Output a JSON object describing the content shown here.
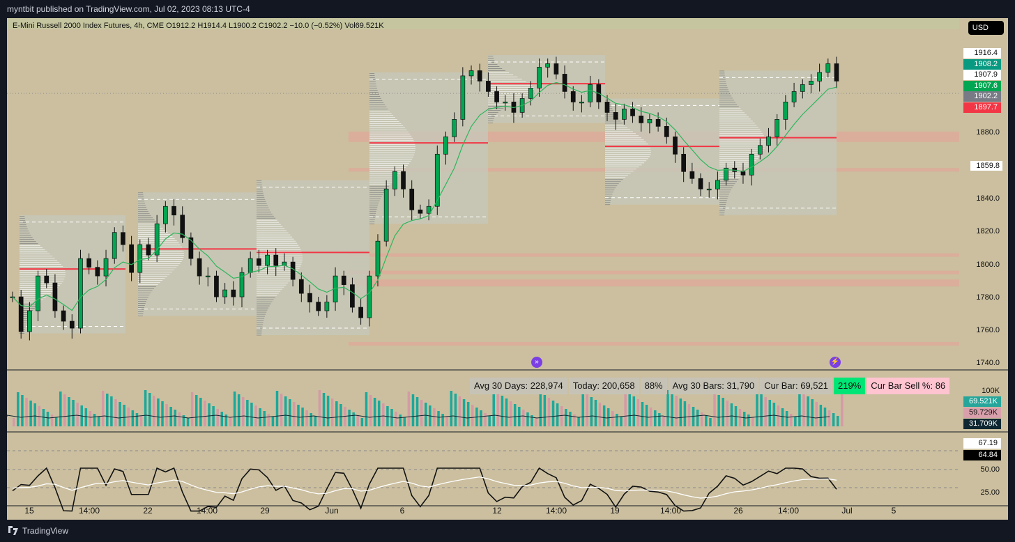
{
  "header": {
    "published": "myntbit published on TradingView.com, Jul 02, 2023 08:13 UTC-4"
  },
  "symbol_line": "E-Mini Russell 2000 Index Futures, 4h, CME  O1912.2  H1914.4  L1900.2  C1902.2  −10.0 (−0.52%)  Vol69.521K",
  "currency": "USD",
  "price_axis": {
    "labels": [
      "1880.0",
      "1840.0",
      "1820.0",
      "1800.0",
      "1780.0",
      "1760.0",
      "1740.0"
    ],
    "label_1860": "1859.8",
    "tags": [
      {
        "text": "1916.4",
        "bg": "#ffffff",
        "fg": "#111111"
      },
      {
        "text": "1908.2",
        "bg": "#089981",
        "fg": "#ffffff"
      },
      {
        "text": "1907.9",
        "bg": "#ffffff",
        "fg": "#111111"
      },
      {
        "text": "1907.6",
        "bg": "#00a651",
        "fg": "#ffffff"
      },
      {
        "text": "1902.2",
        "bg": "#787b86",
        "fg": "#ffffff"
      },
      {
        "text": "1897.7",
        "bg": "#f23645",
        "fg": "#ffffff"
      }
    ]
  },
  "volume_pane": {
    "axis_label": "100K",
    "tags": [
      {
        "text": "69.521K",
        "bg": "#26a69a",
        "fg": "#ffffff"
      },
      {
        "text": "59.729K",
        "bg": "#d9a0ac",
        "fg": "#111111"
      },
      {
        "text": "31.709K",
        "bg": "#0f2732",
        "fg": "#ffffff"
      }
    ],
    "stats": [
      {
        "text": "Avg 30 Days: 228,974",
        "bg": "#c6c3b6"
      },
      {
        "text": "Today: 200,658",
        "bg": "#c6c3b6"
      },
      {
        "text": "88%",
        "bg": "#c6c3b6"
      },
      {
        "text": "Avg 30 Bars: 31,790",
        "bg": "#c6c3b6"
      },
      {
        "text": "Cur Bar: 69,521",
        "bg": "#c6c3b6"
      },
      {
        "text": "219%",
        "bg": "#00e676"
      },
      {
        "text": "Cur Bar Sell %: 86",
        "bg": "#ffc4d0"
      }
    ]
  },
  "rsi_pane": {
    "axis_labels": [
      "50.00",
      "25.00"
    ],
    "tags": [
      {
        "text": "67.19",
        "bg": "#ffffff",
        "fg": "#111111"
      },
      {
        "text": "64.84",
        "bg": "#000000",
        "fg": "#ffffff"
      }
    ]
  },
  "time_axis": [
    "15",
    "14:00",
    "22",
    "14:00",
    "29",
    "Jun",
    "6",
    "12",
    "14:00",
    "19",
    "14:00",
    "26",
    "14:00",
    "Jul",
    "5"
  ],
  "footer": {
    "brand": "TradingView"
  },
  "chart_data": {
    "type": "candlestick",
    "title": "E-Mini Russell 2000 Index Futures",
    "timeframe": "4h",
    "ylim": [
      1735,
      1925
    ],
    "current": {
      "open": 1912.2,
      "high": 1914.4,
      "low": 1900.2,
      "close": 1902.2,
      "change": "−10.0 (−0.52%)",
      "volume": "69.521K"
    },
    "close_path": [
      1778,
      1758,
      1770,
      1790,
      1786,
      1770,
      1764,
      1760,
      1800,
      1795,
      1790,
      1800,
      1815,
      1808,
      1792,
      1808,
      1802,
      1820,
      1830,
      1825,
      1812,
      1800,
      1790,
      1790,
      1778,
      1782,
      1778,
      1792,
      1800,
      1796,
      1802,
      1796,
      1798,
      1788,
      1780,
      1775,
      1770,
      1775,
      1790,
      1785,
      1772,
      1766,
      1790,
      1810,
      1840,
      1850,
      1840,
      1828,
      1826,
      1830,
      1860,
      1870,
      1880,
      1905,
      1908,
      1902,
      1896,
      1890,
      1890,
      1884,
      1892,
      1898,
      1910,
      1912,
      1906,
      1896,
      1890,
      1890,
      1900,
      1890,
      1884,
      1880,
      1886,
      1882,
      1878,
      1880,
      1876,
      1870,
      1860,
      1850,
      1846,
      1840,
      1840,
      1845,
      1852,
      1850,
      1848,
      1860,
      1865,
      1870,
      1880,
      1890,
      1896,
      1900,
      1902,
      1907,
      1912,
      1902
    ]
  }
}
